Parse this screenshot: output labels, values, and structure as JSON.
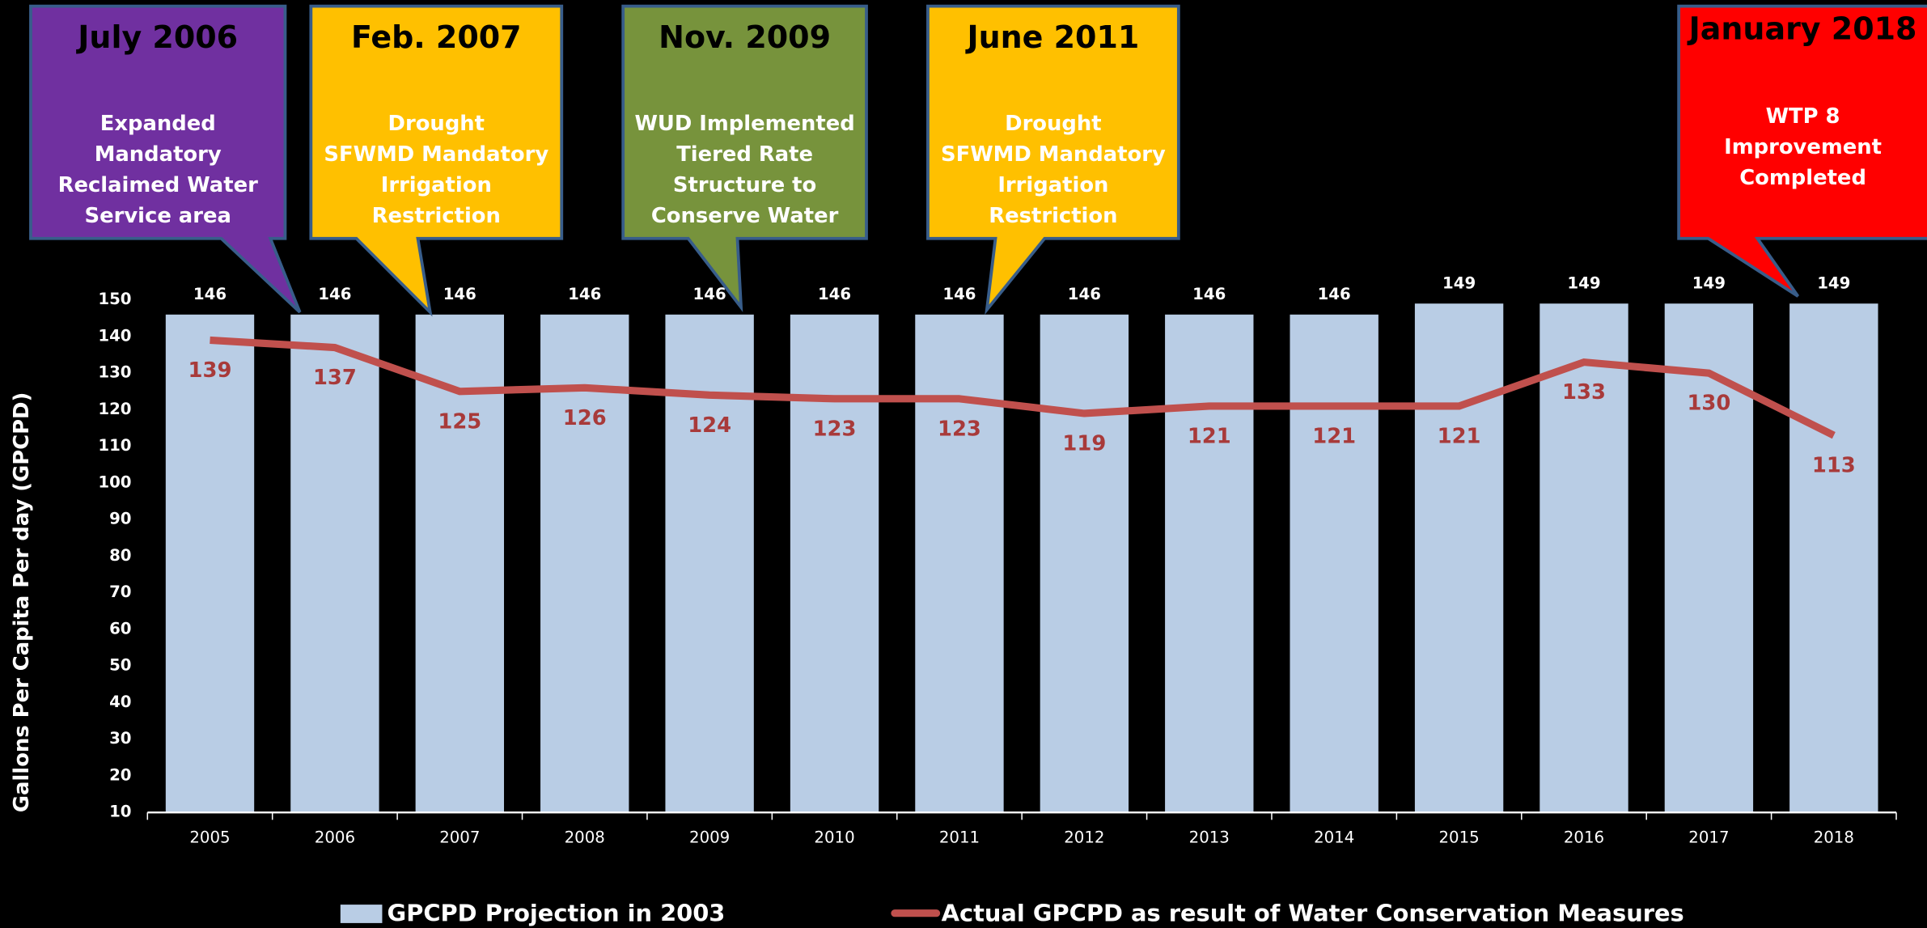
{
  "chart_data": {
    "type": "bar",
    "y_axis_label": "Gallons Per Capita Per day (GPCPD)",
    "categories": [
      "2005",
      "2006",
      "2007",
      "2008",
      "2009",
      "2010",
      "2011",
      "2012",
      "2013",
      "2014",
      "2015",
      "2016",
      "2017",
      "2018"
    ],
    "series": [
      {
        "name": "GPCPD Projection in 2003",
        "type": "bar",
        "color": "#b9cde5",
        "values": [
          146,
          146,
          146,
          146,
          146,
          146,
          146,
          146,
          146,
          146,
          149,
          149,
          149,
          149
        ]
      },
      {
        "name": "Actual GPCPD as result of Water Conservation Measures",
        "type": "line",
        "color": "#c0504d",
        "values": [
          139,
          137,
          125,
          126,
          124,
          123,
          123,
          119,
          121,
          121,
          121,
          133,
          130,
          113
        ]
      }
    ],
    "ylim": [
      10,
      150
    ],
    "yticks": [
      10,
      20,
      30,
      40,
      50,
      60,
      70,
      80,
      90,
      100,
      110,
      120,
      130,
      140,
      150
    ],
    "annotations": [
      {
        "title": "July 2006",
        "lines": [
          "Expanded",
          "Mandatory",
          "Reclaimed Water",
          "Service area"
        ],
        "color": "#7030a0"
      },
      {
        "title": "Feb. 2007",
        "lines": [
          "Drought",
          "SFWMD Mandatory",
          "Irrigation",
          "Restriction"
        ],
        "color": "#ffc000"
      },
      {
        "title": "Nov. 2009",
        "lines": [
          "WUD Implemented",
          "Tiered Rate",
          "Structure to",
          "Conserve Water"
        ],
        "color": "#77933c"
      },
      {
        "title": "June 2011",
        "lines": [
          "Drought",
          "SFWMD Mandatory",
          "Irrigation",
          "Restriction"
        ],
        "color": "#ffc000"
      },
      {
        "title": "January 2018",
        "lines": [
          "WTP 8",
          "Improvement",
          "Completed"
        ],
        "color": "#ff0000"
      }
    ]
  }
}
